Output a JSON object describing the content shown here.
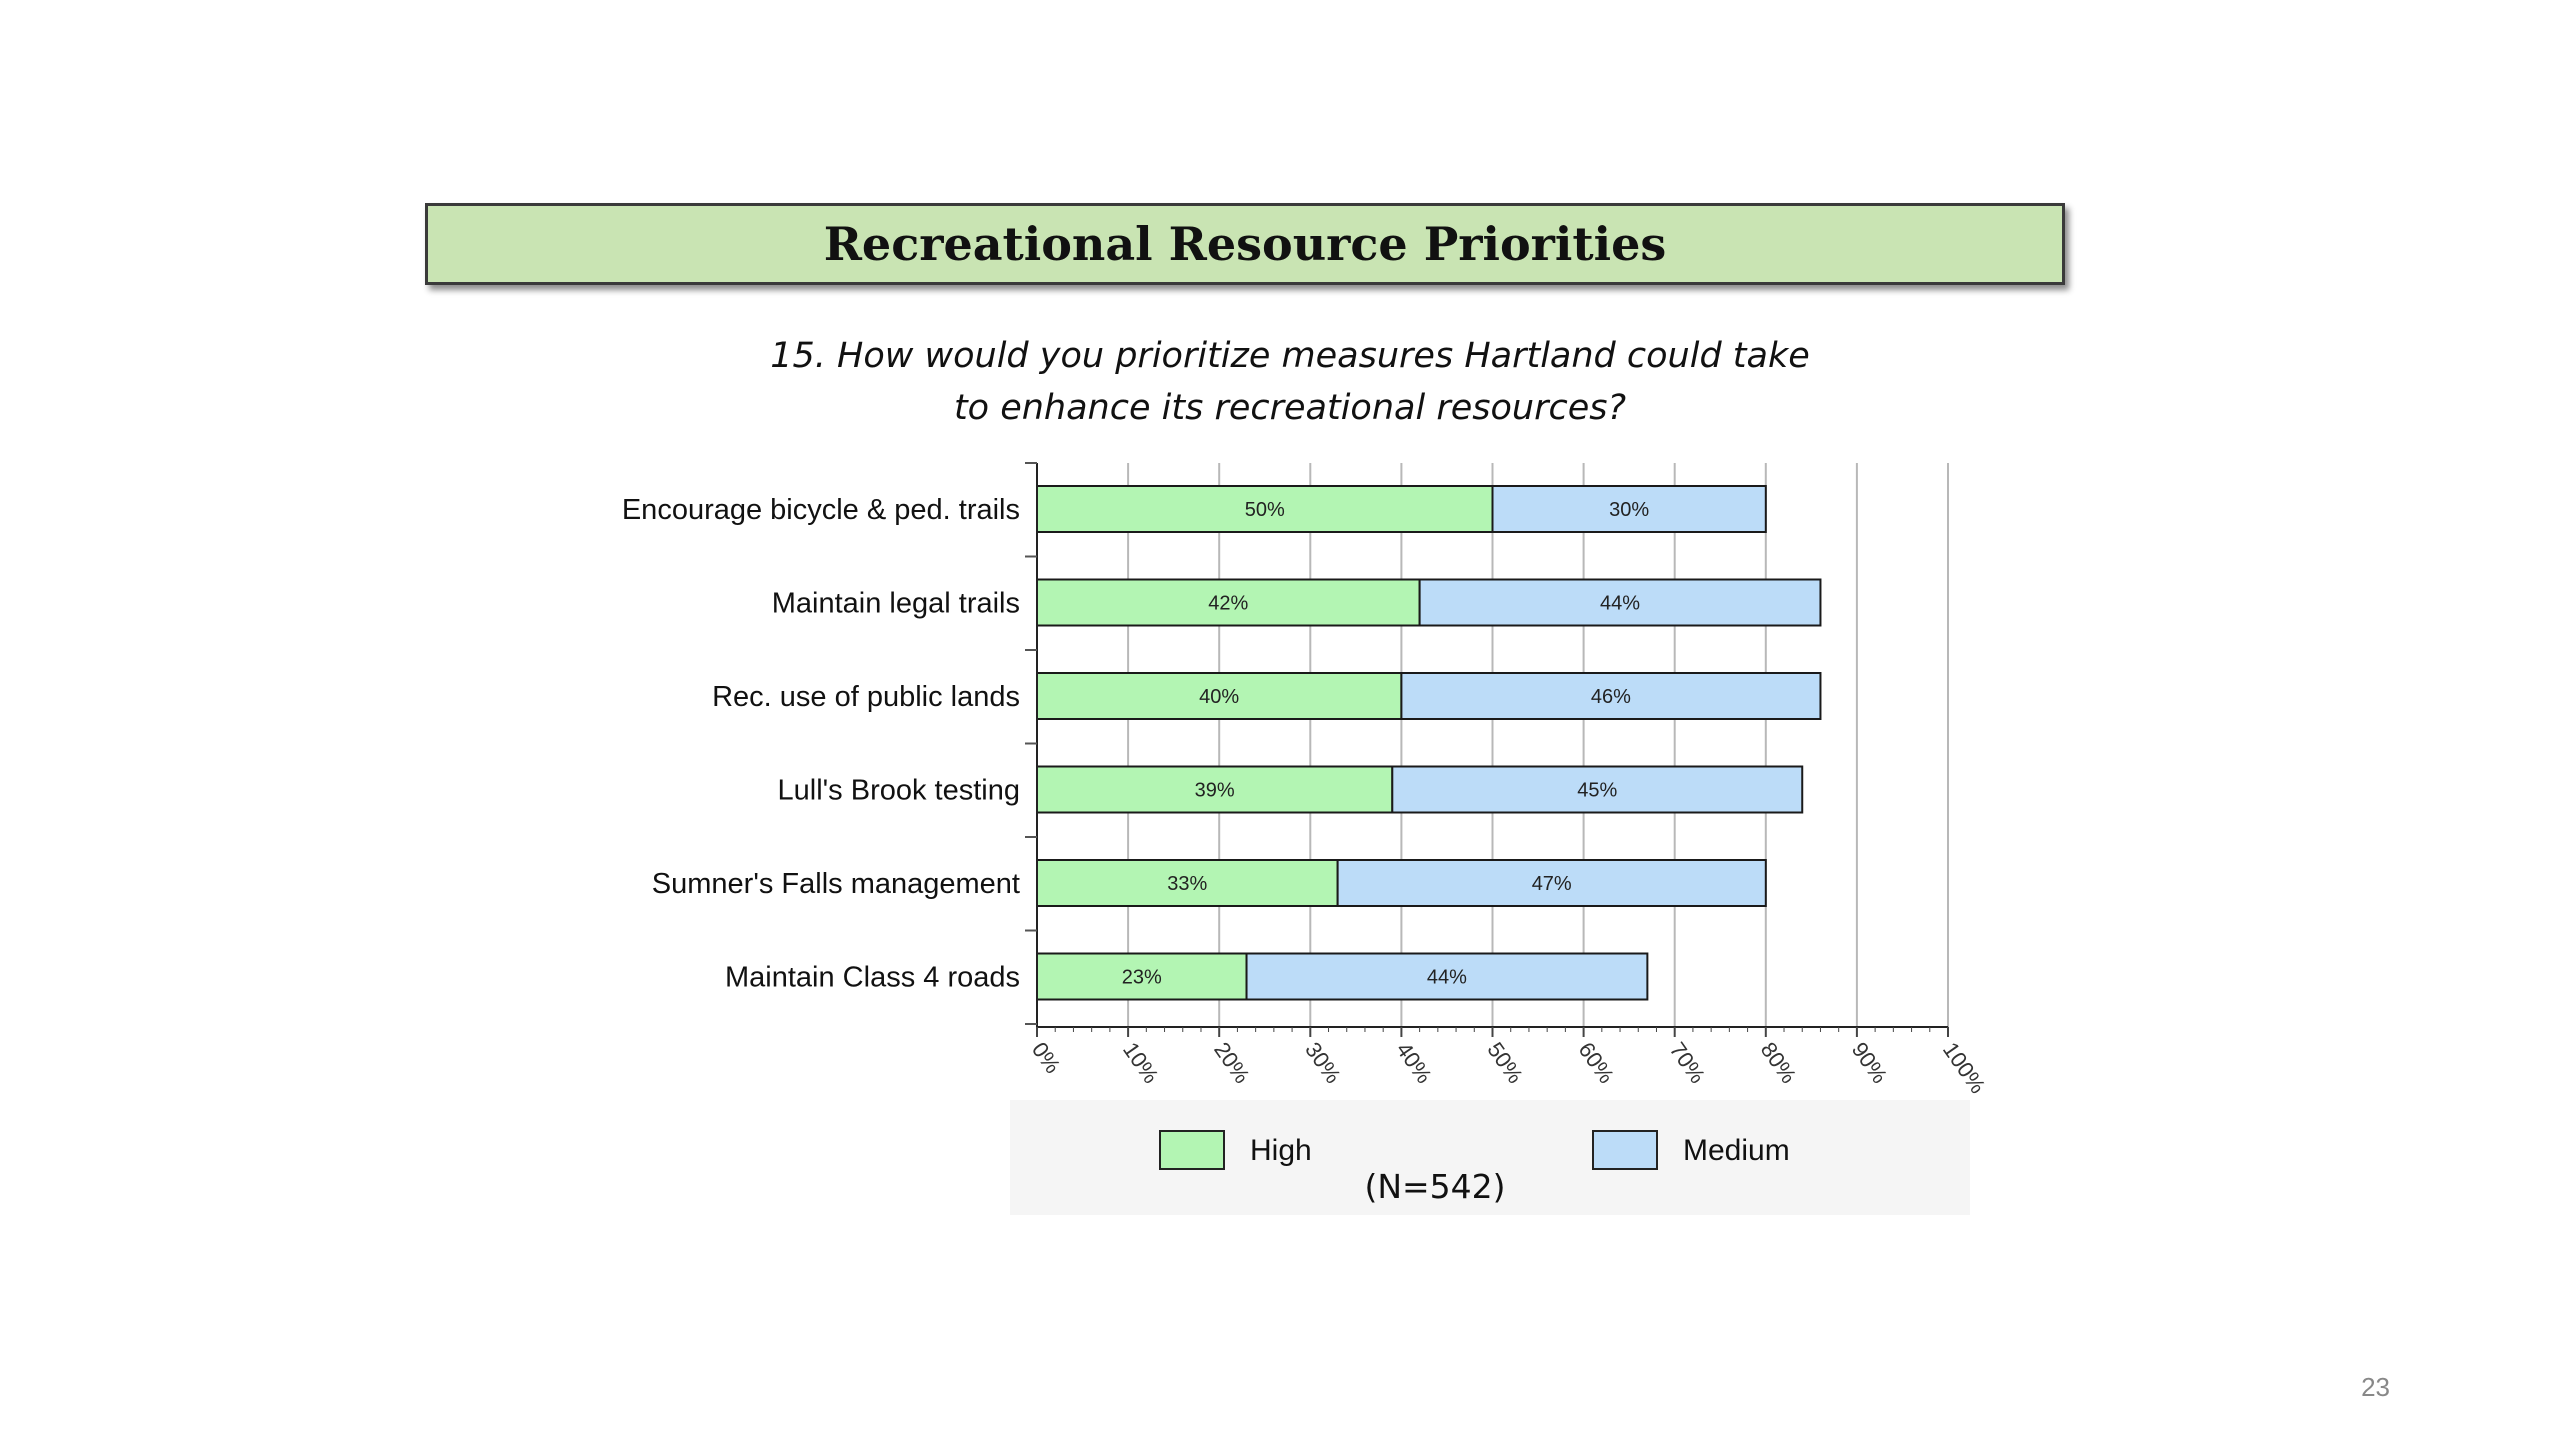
{
  "slide": {
    "title": "Recreational Resource Priorities",
    "question_line1": "15. How would you prioritize measures Hartland could take",
    "question_line2": "to enhance its recreational resources?",
    "sample_note": "(N=542)",
    "page_number": "23"
  },
  "chart_data": {
    "type": "bar",
    "orientation": "horizontal",
    "stacked": true,
    "categories": [
      "Encourage bicycle & ped. trails",
      "Maintain legal trails",
      "Rec. use of public lands",
      "Lull's Brook testing",
      "Sumner's Falls management",
      "Maintain Class 4 roads"
    ],
    "series": [
      {
        "name": "High",
        "values": [
          50,
          42,
          40,
          39,
          33,
          23
        ],
        "labels": [
          "50%",
          "42%",
          "40%",
          "39%",
          "33%",
          "23%"
        ],
        "color": "#b3f5b3"
      },
      {
        "name": "Medium",
        "values": [
          30,
          44,
          46,
          45,
          47,
          44
        ],
        "labels": [
          "30%",
          "44%",
          "46%",
          "45%",
          "47%",
          "44%"
        ],
        "color": "#bcdcf8"
      }
    ],
    "xlim": [
      0,
      100
    ],
    "xticks": [
      0,
      10,
      20,
      30,
      40,
      50,
      60,
      70,
      80,
      90,
      100
    ],
    "xtick_labels": [
      "0%",
      "10%",
      "20%",
      "30%",
      "40%",
      "50%",
      "60%",
      "70%",
      "80%",
      "90%",
      "100%"
    ],
    "grid": true,
    "legend_position": "bottom"
  }
}
